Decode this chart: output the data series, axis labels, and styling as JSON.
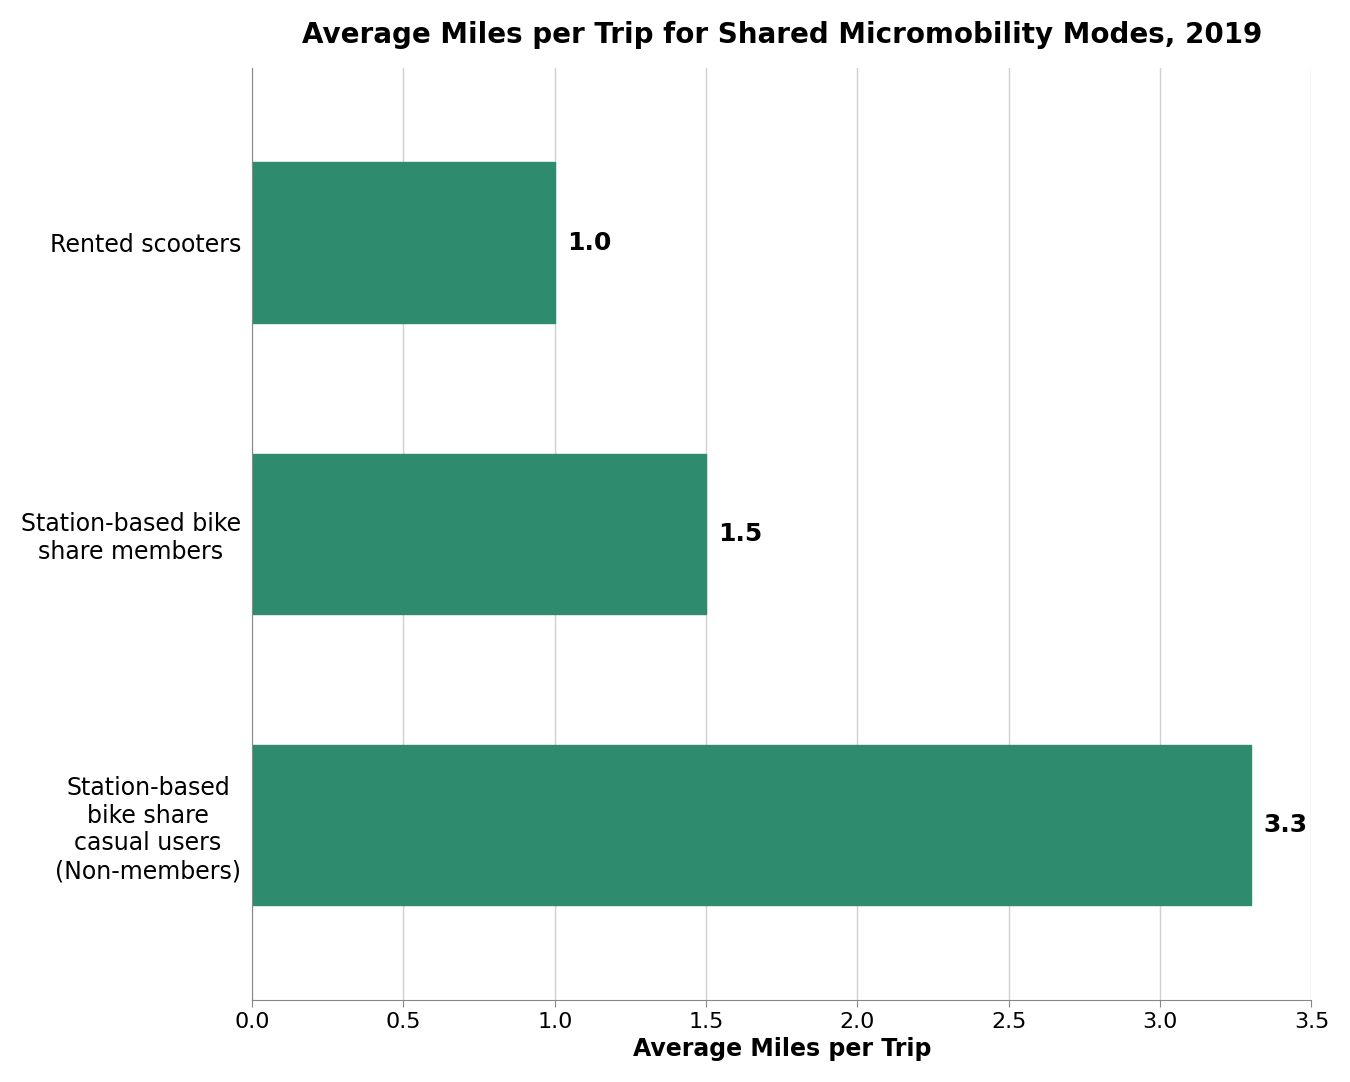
{
  "title": "Average Miles per Trip for Shared Micromobility Modes, 2019",
  "categories": [
    "Station-based\nbike share\ncasual users\n(Non-members)",
    "Station-based bike\nshare members",
    "Rented scooters"
  ],
  "values": [
    3.3,
    1.5,
    1.0
  ],
  "bar_color": "#2e8b6e",
  "xlabel": "Average Miles per Trip",
  "xlim": [
    0,
    3.5
  ],
  "xticks": [
    0.0,
    0.5,
    1.0,
    1.5,
    2.0,
    2.5,
    3.0,
    3.5
  ],
  "bar_height": 0.55,
  "title_fontsize": 20,
  "label_fontsize": 17,
  "tick_fontsize": 16,
  "value_fontsize": 18,
  "background_color": "#ffffff",
  "grid_color": "#d0d0d0"
}
